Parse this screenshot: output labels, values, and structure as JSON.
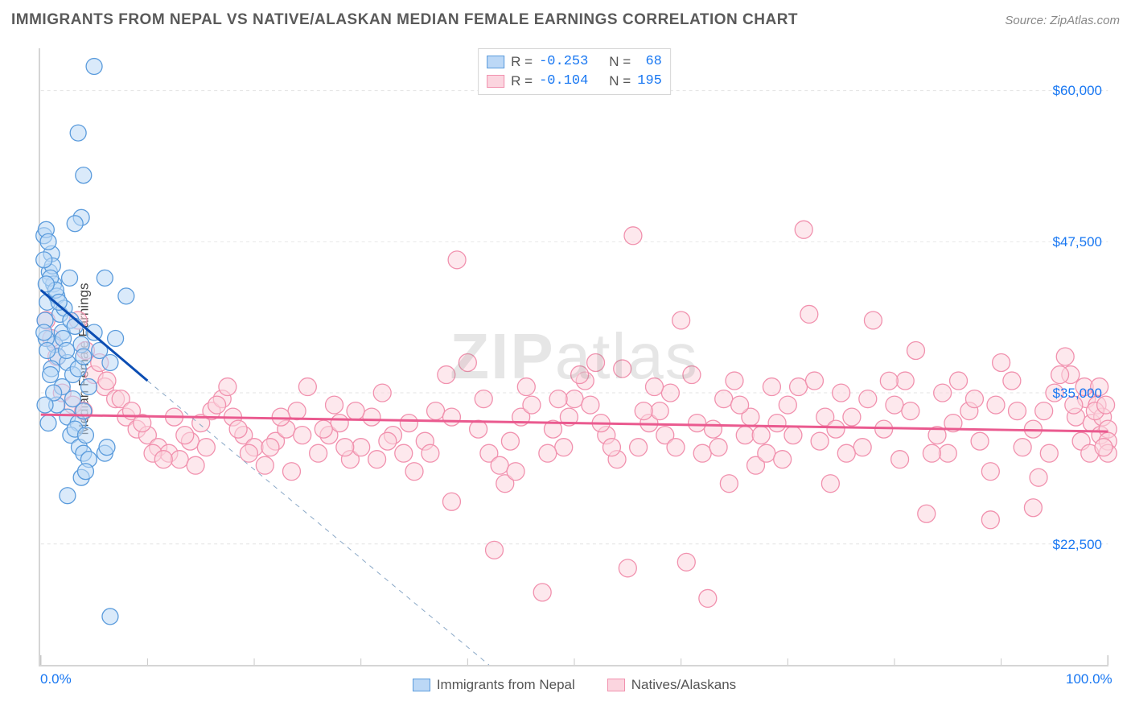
{
  "header": {
    "title": "IMMIGRANTS FROM NEPAL VS NATIVE/ALASKAN MEDIAN FEMALE EARNINGS CORRELATION CHART",
    "source_prefix": "Source: ",
    "source_site": "ZipAtlas.com"
  },
  "watermark": "ZIPatlas",
  "axes": {
    "y_label": "Median Female Earnings",
    "x_min": 0.0,
    "x_max": 100.0,
    "y_min": 12500,
    "y_max": 63500,
    "x_ticks": [
      {
        "v": 0.0,
        "label": "0.0%"
      },
      {
        "v": 100.0,
        "label": "100.0%"
      }
    ],
    "x_minor_ticks": [
      10,
      20,
      30,
      40,
      50,
      60,
      70,
      80,
      90
    ],
    "y_ticks": [
      {
        "v": 22500,
        "label": "$22,500"
      },
      {
        "v": 35000,
        "label": "$35,000"
      },
      {
        "v": 47500,
        "label": "$47,500"
      },
      {
        "v": 60000,
        "label": "$60,000"
      }
    ],
    "grid_color": "#e3e3e3",
    "tick_color": "#c8c8c8"
  },
  "series": {
    "blue": {
      "name": "Immigrants from Nepal",
      "fill": "#bcd8f6",
      "stroke": "#5a9bdc",
      "marker_r": 10,
      "fill_opacity": 0.55,
      "R": "-0.253",
      "N": " 68",
      "trend": {
        "x1": 0.0,
        "y1": 43500,
        "x2": 10.0,
        "y2": 36000,
        "color": "#0b4db3",
        "width": 3
      },
      "trend_ext": {
        "x1": 10.0,
        "y1": 36000,
        "x2": 42.0,
        "y2": 12500,
        "color": "#8aa8c7",
        "dash": "6,6",
        "width": 1
      },
      "points": [
        [
          0.3,
          48000
        ],
        [
          0.5,
          48500
        ],
        [
          0.8,
          45000
        ],
        [
          1.0,
          46500
        ],
        [
          1.2,
          44000
        ],
        [
          0.6,
          42500
        ],
        [
          0.4,
          41000
        ],
        [
          1.5,
          43000
        ],
        [
          1.8,
          41500
        ],
        [
          2.0,
          40000
        ],
        [
          0.7,
          47500
        ],
        [
          1.1,
          45500
        ],
        [
          1.3,
          39000
        ],
        [
          1.6,
          38000
        ],
        [
          2.2,
          42000
        ],
        [
          2.5,
          37500
        ],
        [
          2.8,
          41000
        ],
        [
          3.0,
          36500
        ],
        [
          0.9,
          44500
        ],
        [
          1.4,
          43500
        ],
        [
          1.7,
          42500
        ],
        [
          2.1,
          39500
        ],
        [
          2.4,
          38500
        ],
        [
          2.7,
          44500
        ],
        [
          3.2,
          40500
        ],
        [
          3.5,
          37000
        ],
        [
          3.8,
          39000
        ],
        [
          4.0,
          38000
        ],
        [
          4.5,
          35500
        ],
        [
          5.0,
          40000
        ],
        [
          5.5,
          38500
        ],
        [
          6.0,
          44500
        ],
        [
          6.5,
          37500
        ],
        [
          7.0,
          39500
        ],
        [
          8.0,
          43000
        ],
        [
          0.5,
          39500
        ],
        [
          1.0,
          37000
        ],
        [
          1.5,
          34000
        ],
        [
          2.0,
          35500
        ],
        [
          2.5,
          33000
        ],
        [
          3.0,
          34500
        ],
        [
          3.5,
          32500
        ],
        [
          4.0,
          33500
        ],
        [
          2.8,
          31500
        ],
        [
          3.2,
          32000
        ],
        [
          3.6,
          30500
        ],
        [
          4.2,
          31500
        ],
        [
          4.0,
          30000
        ],
        [
          4.5,
          29500
        ],
        [
          3.8,
          28000
        ],
        [
          4.2,
          28500
        ],
        [
          6.0,
          30000
        ],
        [
          6.2,
          30500
        ],
        [
          2.5,
          26500
        ],
        [
          0.3,
          40000
        ],
        [
          0.6,
          38500
        ],
        [
          0.9,
          36500
        ],
        [
          1.2,
          35000
        ],
        [
          0.4,
          34000
        ],
        [
          0.7,
          32500
        ],
        [
          3.5,
          56500
        ],
        [
          5.0,
          62000
        ],
        [
          4.0,
          53000
        ],
        [
          3.8,
          49500
        ],
        [
          3.2,
          49000
        ],
        [
          6.5,
          16500
        ],
        [
          0.3,
          46000
        ],
        [
          0.5,
          44000
        ]
      ]
    },
    "pink": {
      "name": "Natives/Alaskans",
      "fill": "#fbd5df",
      "stroke": "#f191ae",
      "marker_r": 11,
      "fill_opacity": 0.55,
      "R": "-0.104",
      "N": "195",
      "trend": {
        "x1": 0.0,
        "y1": 33200,
        "x2": 100.0,
        "y2": 31800,
        "color": "#ea5a8f",
        "width": 3
      },
      "points": [
        [
          0.5,
          41000
        ],
        [
          1.0,
          39500
        ],
        [
          1.5,
          38000
        ],
        [
          2.0,
          35000
        ],
        [
          3.0,
          34000
        ],
        [
          4.0,
          33500
        ],
        [
          5.0,
          36500
        ],
        [
          6.0,
          35500
        ],
        [
          7.0,
          34500
        ],
        [
          8.0,
          33000
        ],
        [
          9.0,
          32000
        ],
        [
          10.0,
          31500
        ],
        [
          11.0,
          30500
        ],
        [
          12.0,
          30000
        ],
        [
          13.0,
          29500
        ],
        [
          14.0,
          31000
        ],
        [
          15.0,
          32500
        ],
        [
          16.0,
          33500
        ],
        [
          17.0,
          34500
        ],
        [
          18.0,
          33000
        ],
        [
          19.0,
          31500
        ],
        [
          20.0,
          30500
        ],
        [
          21.0,
          29000
        ],
        [
          22.0,
          31000
        ],
        [
          23.0,
          32000
        ],
        [
          24.0,
          33500
        ],
        [
          25.0,
          35500
        ],
        [
          26.0,
          30000
        ],
        [
          27.0,
          31500
        ],
        [
          28.0,
          32500
        ],
        [
          29.0,
          29500
        ],
        [
          30.0,
          30500
        ],
        [
          31.0,
          33000
        ],
        [
          32.0,
          35000
        ],
        [
          33.0,
          31500
        ],
        [
          34.0,
          30000
        ],
        [
          35.0,
          28500
        ],
        [
          36.0,
          31000
        ],
        [
          37.0,
          33500
        ],
        [
          38.0,
          36500
        ],
        [
          39.0,
          46000
        ],
        [
          40.0,
          37500
        ],
        [
          41.0,
          32000
        ],
        [
          42.0,
          30000
        ],
        [
          43.0,
          29000
        ],
        [
          44.0,
          31000
        ],
        [
          45.0,
          33000
        ],
        [
          46.0,
          34000
        ],
        [
          47.0,
          18500
        ],
        [
          48.0,
          32000
        ],
        [
          49.0,
          30500
        ],
        [
          50.0,
          34500
        ],
        [
          51.0,
          36000
        ],
        [
          52.0,
          37500
        ],
        [
          53.0,
          31500
        ],
        [
          54.0,
          29500
        ],
        [
          55.0,
          20500
        ],
        [
          55.5,
          48000
        ],
        [
          56.0,
          30500
        ],
        [
          57.0,
          32500
        ],
        [
          58.0,
          33500
        ],
        [
          59.0,
          35000
        ],
        [
          60.0,
          41000
        ],
        [
          60.5,
          21000
        ],
        [
          61.0,
          36500
        ],
        [
          62.0,
          30000
        ],
        [
          62.5,
          18000
        ],
        [
          63.0,
          32000
        ],
        [
          64.0,
          34500
        ],
        [
          65.0,
          36000
        ],
        [
          66.0,
          31500
        ],
        [
          67.0,
          29000
        ],
        [
          68.0,
          30000
        ],
        [
          69.0,
          32500
        ],
        [
          70.0,
          34000
        ],
        [
          71.0,
          35500
        ],
        [
          72.0,
          41500
        ],
        [
          73.0,
          31000
        ],
        [
          74.0,
          27500
        ],
        [
          75.0,
          35000
        ],
        [
          76.0,
          33000
        ],
        [
          77.0,
          30500
        ],
        [
          78.0,
          41000
        ],
        [
          79.0,
          32000
        ],
        [
          80.0,
          34000
        ],
        [
          81.0,
          36000
        ],
        [
          82.0,
          38500
        ],
        [
          83.0,
          25000
        ],
        [
          84.0,
          31500
        ],
        [
          85.0,
          30000
        ],
        [
          86.0,
          36000
        ],
        [
          87.0,
          33500
        ],
        [
          88.0,
          31000
        ],
        [
          89.0,
          24500
        ],
        [
          89.5,
          34000
        ],
        [
          90.0,
          37500
        ],
        [
          91.0,
          36000
        ],
        [
          92.0,
          30500
        ],
        [
          93.0,
          32000
        ],
        [
          93.5,
          28000
        ],
        [
          94.0,
          33500
        ],
        [
          95.0,
          35000
        ],
        [
          96.0,
          38000
        ],
        [
          96.5,
          36500
        ],
        [
          97.0,
          33000
        ],
        [
          97.5,
          31000
        ],
        [
          98.0,
          34500
        ],
        [
          98.5,
          32500
        ],
        [
          99.0,
          34000
        ],
        [
          99.3,
          31500
        ],
        [
          99.5,
          33000
        ],
        [
          100.0,
          32000
        ],
        [
          100.0,
          31000
        ],
        [
          100.0,
          30000
        ],
        [
          71.5,
          48500
        ],
        [
          3.5,
          41000
        ],
        [
          4.2,
          38500
        ],
        [
          5.5,
          37500
        ],
        [
          6.2,
          36000
        ],
        [
          7.5,
          34500
        ],
        [
          8.5,
          33500
        ],
        [
          9.5,
          32500
        ],
        [
          10.5,
          30000
        ],
        [
          11.5,
          29500
        ],
        [
          12.5,
          33000
        ],
        [
          13.5,
          31500
        ],
        [
          14.5,
          29000
        ],
        [
          15.5,
          30500
        ],
        [
          16.5,
          34000
        ],
        [
          17.5,
          35500
        ],
        [
          18.5,
          32000
        ],
        [
          19.5,
          30000
        ],
        [
          21.5,
          30500
        ],
        [
          22.5,
          33000
        ],
        [
          23.5,
          28500
        ],
        [
          24.5,
          31500
        ],
        [
          26.5,
          32000
        ],
        [
          27.5,
          34000
        ],
        [
          28.5,
          30500
        ],
        [
          29.5,
          33500
        ],
        [
          31.5,
          29500
        ],
        [
          32.5,
          31000
        ],
        [
          34.5,
          32500
        ],
        [
          36.5,
          30000
        ],
        [
          38.5,
          33000
        ],
        [
          41.5,
          34500
        ],
        [
          43.5,
          27500
        ],
        [
          45.5,
          35500
        ],
        [
          47.5,
          30000
        ],
        [
          49.5,
          33000
        ],
        [
          51.5,
          34000
        ],
        [
          53.5,
          30500
        ],
        [
          56.5,
          33500
        ],
        [
          58.5,
          31500
        ],
        [
          61.5,
          32500
        ],
        [
          63.5,
          30500
        ],
        [
          66.5,
          33000
        ],
        [
          68.5,
          35500
        ],
        [
          70.5,
          31500
        ],
        [
          73.5,
          33000
        ],
        [
          75.5,
          30000
        ],
        [
          77.5,
          34500
        ],
        [
          79.5,
          35988
        ],
        [
          81.5,
          33500
        ],
        [
          83.5,
          30000
        ],
        [
          85.5,
          32500
        ],
        [
          87.5,
          34500
        ],
        [
          89.0,
          28500
        ],
        [
          91.5,
          33500
        ],
        [
          93.0,
          25500
        ],
        [
          94.5,
          30000
        ],
        [
          95.5,
          36500
        ],
        [
          96.8,
          34000
        ],
        [
          97.8,
          35500
        ],
        [
          98.3,
          30000
        ],
        [
          98.8,
          33500
        ],
        [
          99.2,
          35500
        ],
        [
          99.6,
          30500
        ],
        [
          99.8,
          34000
        ],
        [
          38.5,
          26000
        ],
        [
          44.5,
          28500
        ],
        [
          50.5,
          36500
        ],
        [
          54.5,
          37000
        ],
        [
          57.5,
          35500
        ],
        [
          64.5,
          27500
        ],
        [
          67.5,
          31500
        ],
        [
          72.5,
          36000
        ],
        [
          42.5,
          22000
        ],
        [
          48.5,
          34500
        ],
        [
          52.5,
          32500
        ],
        [
          59.5,
          30500
        ],
        [
          65.5,
          34000
        ],
        [
          69.5,
          29500
        ],
        [
          74.5,
          32000
        ],
        [
          80.5,
          29500
        ],
        [
          84.5,
          35000
        ]
      ]
    }
  },
  "colors": {
    "blue_swatch_fill": "#bcd8f6",
    "blue_swatch_stroke": "#5a9bdc",
    "pink_swatch_fill": "#fbd5df",
    "pink_swatch_stroke": "#f191ae",
    "stat_text": "#555555",
    "stat_value": "#1877f2"
  },
  "legend_labels": {
    "R": "R =",
    "N": "N ="
  }
}
